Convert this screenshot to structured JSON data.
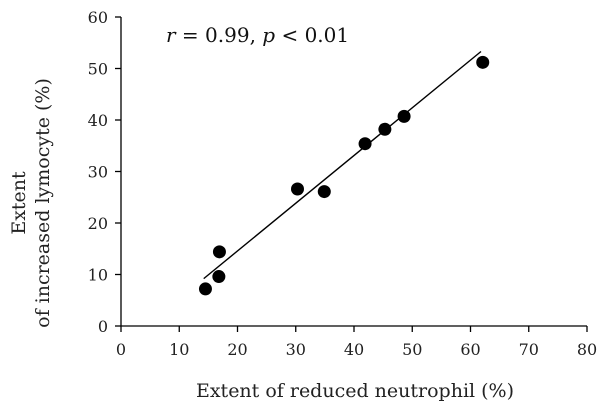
{
  "chart_data": {
    "type": "scatter",
    "title": "",
    "xlabel": "Extent of reduced neutrophil (%)",
    "ylabel": [
      "Extent",
      "of increased lymocyte (%)"
    ],
    "xlim": [
      0,
      80
    ],
    "ylim": [
      0,
      60
    ],
    "x_ticks": [
      0,
      10,
      20,
      30,
      40,
      50,
      60,
      70,
      80
    ],
    "y_ticks": [
      0,
      10,
      20,
      30,
      40,
      50,
      60
    ],
    "grid": false,
    "annotation": {
      "r_symbol": "r",
      "r_text": " = 0.99, ",
      "p_symbol": "p",
      "p_text": " < 0.01"
    },
    "series": [
      {
        "points": [
          {
            "x": 14.5,
            "y": 7.2
          },
          {
            "x": 16.8,
            "y": 9.6
          },
          {
            "x": 16.9,
            "y": 14.4
          },
          {
            "x": 30.3,
            "y": 26.6
          },
          {
            "x": 34.9,
            "y": 26.1
          },
          {
            "x": 41.9,
            "y": 35.4
          },
          {
            "x": 45.3,
            "y": 38.2
          },
          {
            "x": 48.6,
            "y": 40.7
          },
          {
            "x": 62.1,
            "y": 51.2
          }
        ],
        "marker_color": "#000000"
      }
    ],
    "trendline": {
      "x": [
        14.2,
        61.8
      ],
      "y": [
        9.2,
        53.3
      ],
      "color": "#000000"
    }
  }
}
